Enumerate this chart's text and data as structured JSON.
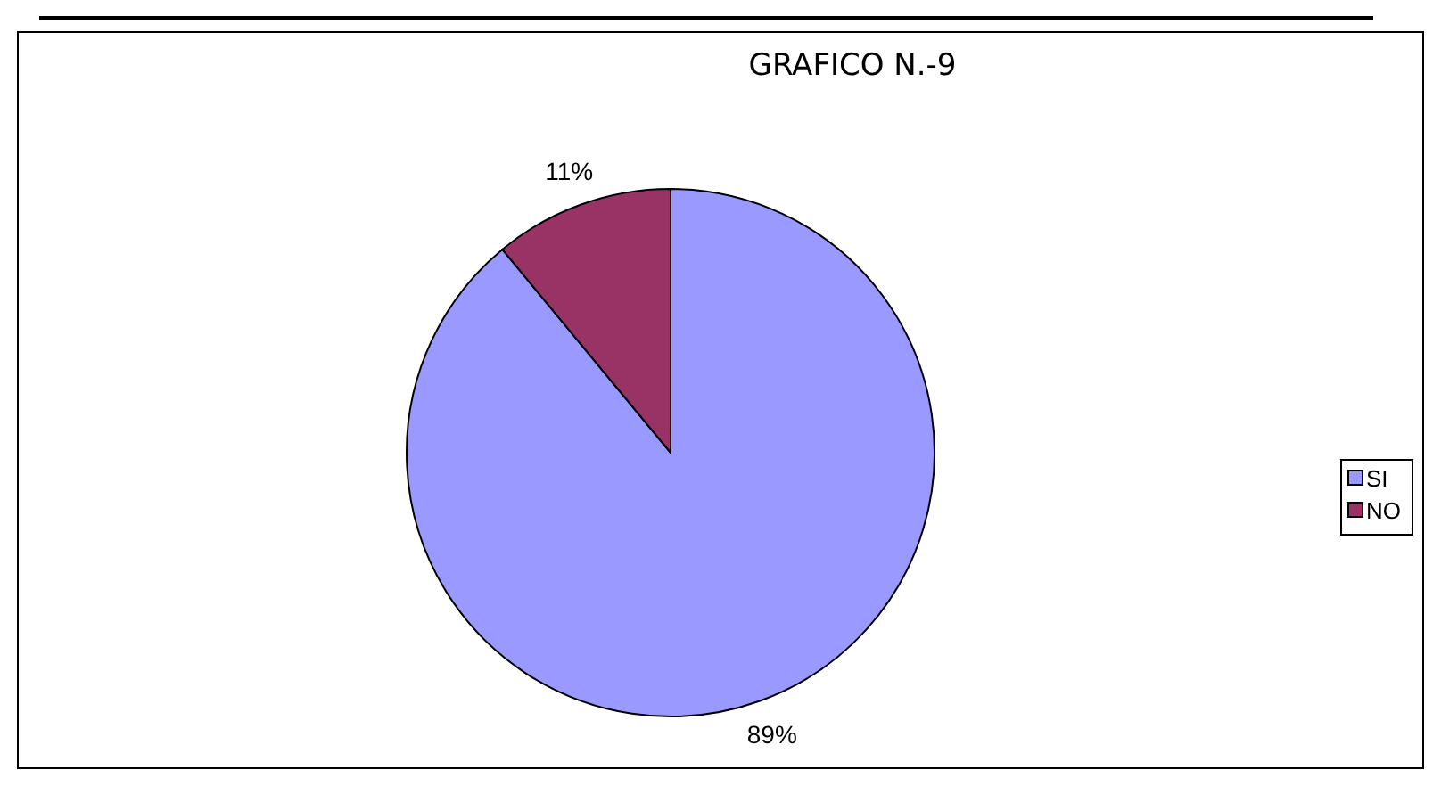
{
  "chart_data": {
    "type": "pie",
    "title": "GRAFICO N.-9",
    "categories": [
      "SI",
      "NO"
    ],
    "values": [
      89,
      11
    ],
    "colors": [
      "#9999ff",
      "#993366"
    ],
    "value_labels": [
      "89%",
      "11%"
    ],
    "legend": "right"
  }
}
